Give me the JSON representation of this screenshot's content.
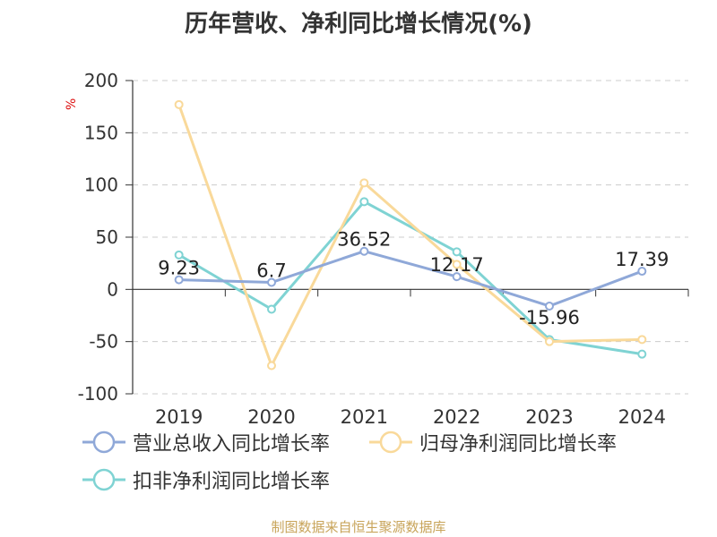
{
  "chart_data": {
    "type": "line",
    "title": "历年营收、净利同比增长情况(%)",
    "ylabel": "%",
    "categories": [
      "2019",
      "2020",
      "2021",
      "2022",
      "2023",
      "2024"
    ],
    "ylim": [
      -100,
      200
    ],
    "yticks": [
      200,
      150,
      100,
      50,
      0,
      -50,
      -100
    ],
    "grid": true,
    "legend_position": "bottom",
    "series": [
      {
        "name": "营业总收入同比增长率",
        "color": "#8fa8d8",
        "values": [
          9.23,
          6.7,
          36.52,
          12.17,
          -15.96,
          17.39
        ],
        "labels": [
          "9.23",
          "6.7",
          "36.52",
          "12.17",
          "-15.96",
          "17.39"
        ]
      },
      {
        "name": "归母净利润同比增长率",
        "color": "#f9d99a",
        "values": [
          177,
          -73,
          102,
          24,
          -50,
          -48
        ]
      },
      {
        "name": "扣非净利润同比增长率",
        "color": "#7fd3d3",
        "values": [
          33,
          -19,
          84,
          36,
          -48,
          -62
        ]
      }
    ]
  },
  "source_note": "制图数据来自恒生聚源数据库"
}
